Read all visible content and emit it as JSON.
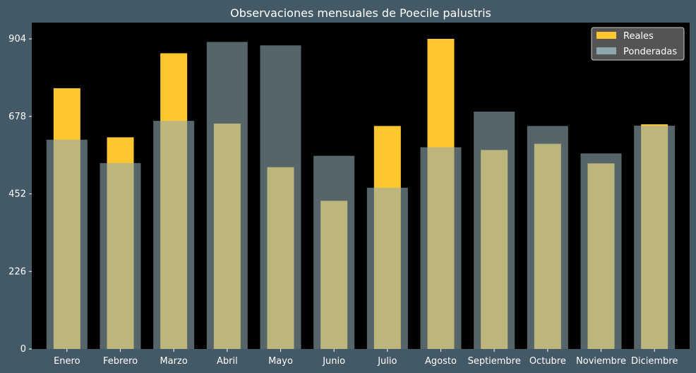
{
  "colors": {
    "figure_background": "#435966",
    "plot_background": "#000000",
    "reales": "#ffc72e",
    "ponderadas": "#8fa8b0",
    "legend_background": "#595959",
    "text": "#ffffff"
  },
  "chart_data": {
    "type": "bar",
    "title": "Observaciones mensuales de Poecile palustris",
    "xlabel": "",
    "ylabel": "",
    "categories": [
      "Enero",
      "Febrero",
      "Marzo",
      "Abril",
      "Mayo",
      "Junio",
      "Julio",
      "Agosto",
      "Septiembre",
      "Octubre",
      "Noviembre",
      "Diciembre"
    ],
    "series": [
      {
        "name": "Reales",
        "values": [
          760,
          617,
          862,
          657,
          530,
          432,
          650,
          904,
          580,
          598,
          541,
          655
        ]
      },
      {
        "name": "Ponderadas",
        "values": [
          610,
          542,
          665,
          895,
          885,
          563,
          470,
          588,
          692,
          650,
          570,
          651
        ]
      }
    ],
    "yticks": [
      0,
      226,
      452,
      678,
      904
    ],
    "ylim": [
      0,
      904
    ],
    "grid": false,
    "legend_position": "top-right"
  }
}
